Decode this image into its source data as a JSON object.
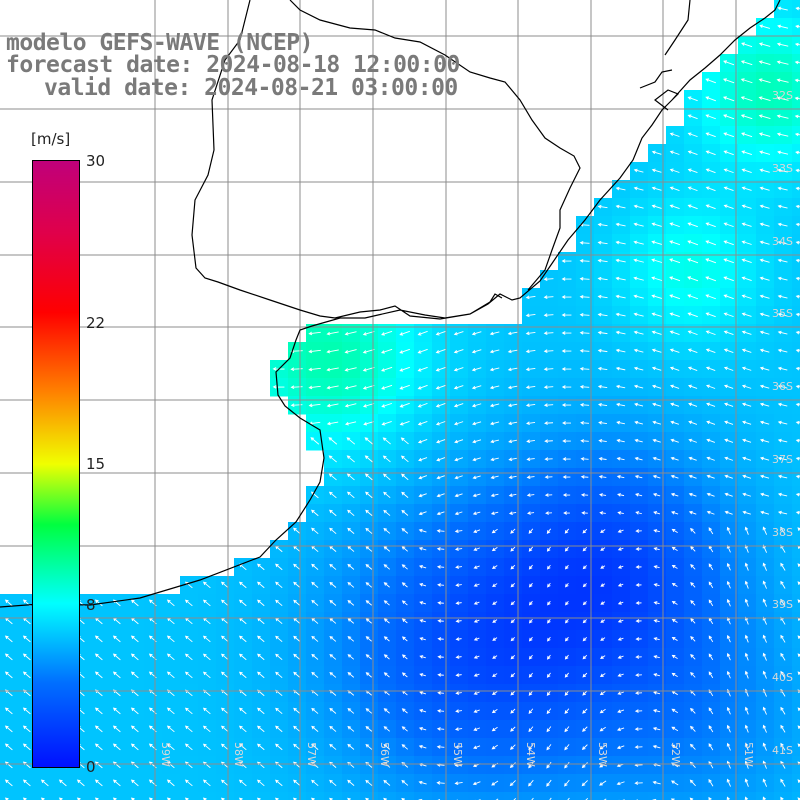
{
  "title": {
    "line1": "modelo GEFS-WAVE (NCEP)",
    "line2": "forecast date: 2024-08-18 12:00:00",
    "line3": "valid date: 2024-08-21 03:00:00"
  },
  "colorbar": {
    "unit": "[m/s]",
    "ticks": [
      "30",
      "22",
      "15",
      "8",
      "0"
    ],
    "tick_values": [
      30,
      22,
      15,
      8,
      0
    ],
    "range": [
      0,
      30
    ]
  },
  "latitude_labels": [
    "32S",
    "33S",
    "34S",
    "35S",
    "36S",
    "37S",
    "38S",
    "39S",
    "40S",
    "41S"
  ],
  "longitude_labels": [
    "59W",
    "58W",
    "57W",
    "56W",
    "55W",
    "54W",
    "53W",
    "52W",
    "51W"
  ],
  "colors": {
    "land": "#ffffff",
    "grid": "#8c8c8c",
    "coast": "#000000",
    "arrows": "#ffffff",
    "title": "#7a7a7a"
  }
}
